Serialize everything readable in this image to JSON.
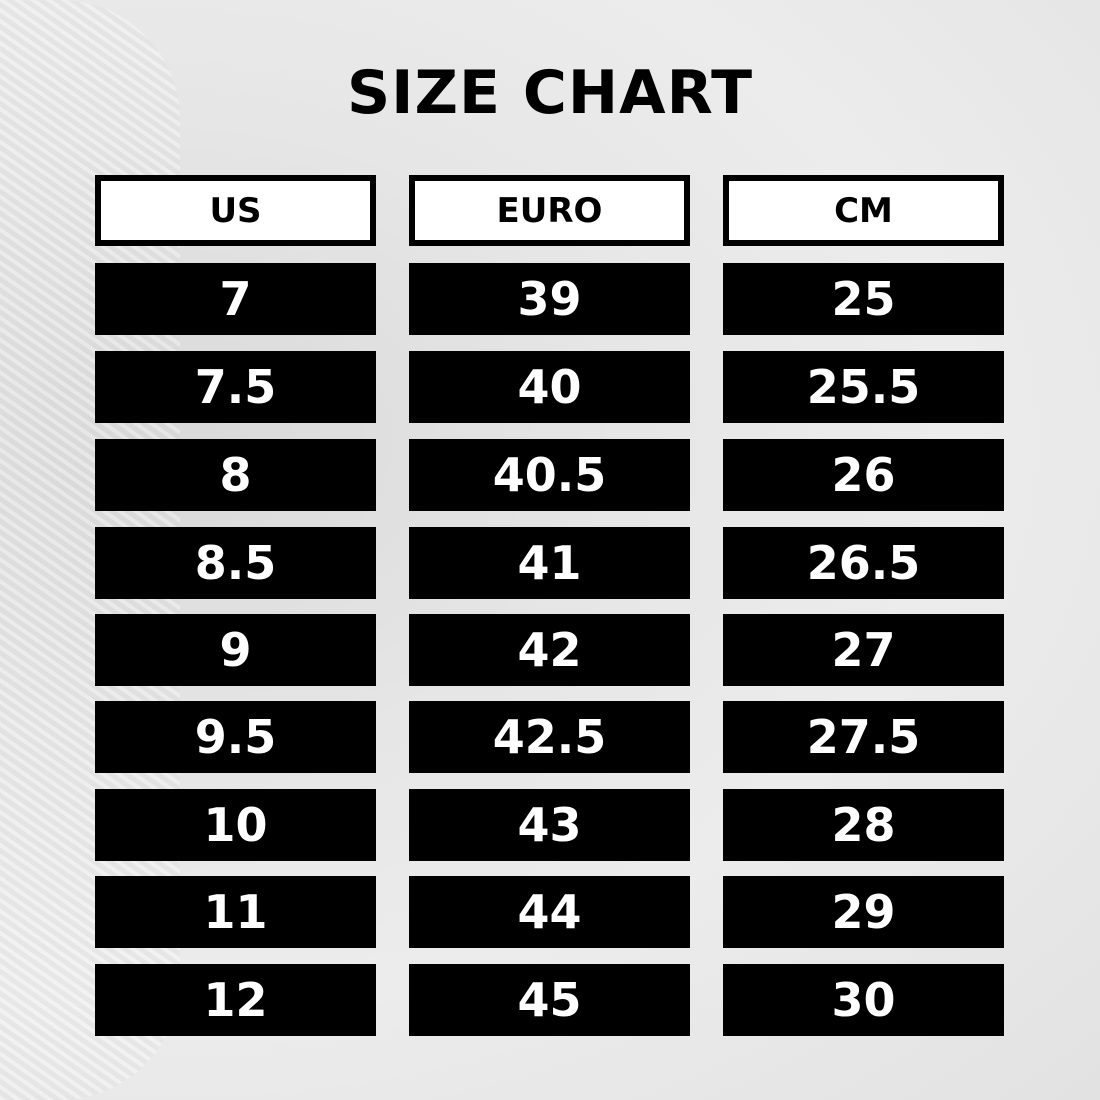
{
  "title": "SIZE CHART",
  "table": {
    "columns": [
      {
        "header": "US",
        "values": [
          "7",
          "7.5",
          "8",
          "8.5",
          "9",
          "9.5",
          "10",
          "11",
          "12"
        ]
      },
      {
        "header": "EURO",
        "values": [
          "39",
          "40",
          "40.5",
          "41",
          "42",
          "42.5",
          "43",
          "44",
          "45"
        ]
      },
      {
        "header": "CM",
        "values": [
          "25",
          "25.5",
          "26",
          "26.5",
          "27",
          "27.5",
          "28",
          "29",
          "30"
        ]
      }
    ]
  },
  "colors": {
    "cell_bg": "#000000",
    "cell_text": "#ffffff",
    "header_bg": "#ffffff"
  }
}
